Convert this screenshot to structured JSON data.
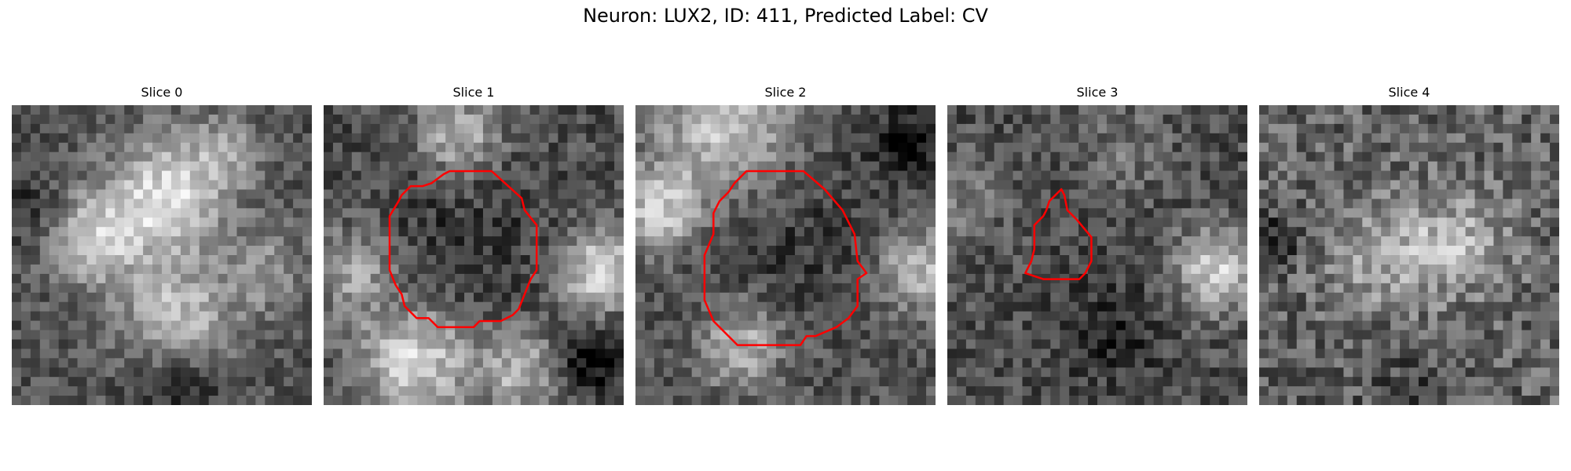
{
  "figure": {
    "title": "Neuron: LUX2, ID: 411, Predicted Label: CV"
  },
  "outline_color": "#ff0000",
  "panels": [
    {
      "title": "Slice 0",
      "has_outline": false
    },
    {
      "title": "Slice 1",
      "has_outline": true
    },
    {
      "title": "Slice 2",
      "has_outline": true
    },
    {
      "title": "Slice 3",
      "has_outline": true
    },
    {
      "title": "Slice 4",
      "has_outline": false
    }
  ]
}
